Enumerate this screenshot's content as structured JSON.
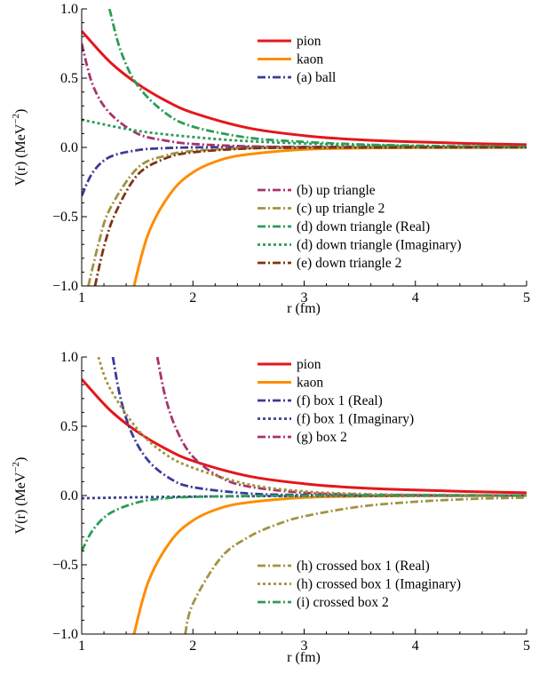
{
  "chart_data": [
    {
      "type": "line",
      "title": "",
      "xlabel": "r (fm)",
      "ylabel": "V(r) (MeV",
      "ylabel_exp": "−2",
      "ylabel_close": ")",
      "xlim": [
        1,
        5
      ],
      "ylim": [
        -1.0,
        1.0
      ],
      "xticks": [
        1,
        2,
        3,
        4,
        5
      ],
      "xtick_labels": [
        "1",
        "2",
        "3",
        "4",
        "5"
      ],
      "yticks": [
        -1.0,
        -0.5,
        0.0,
        0.5,
        1.0
      ],
      "ytick_labels": [
        "−1.0",
        "−0.5",
        "0.0",
        "0.5",
        "1.0"
      ],
      "grid": false,
      "legend_placement": "upper-right and lower-right groups",
      "series": [
        {
          "name": "pion",
          "color": "#e4161b",
          "style": "solid",
          "x": [
            1.0,
            1.25,
            1.5,
            1.75,
            2.0,
            2.5,
            3.0,
            3.5,
            4.0,
            4.5,
            5.0
          ],
          "values": [
            0.84,
            0.62,
            0.46,
            0.34,
            0.25,
            0.14,
            0.085,
            0.055,
            0.04,
            0.028,
            0.02
          ]
        },
        {
          "name": "kaon",
          "color": "#ff8c00",
          "style": "solid",
          "x": [
            1.47,
            1.6,
            1.8,
            2.0,
            2.25,
            2.5,
            3.0,
            3.5,
            4.0,
            4.5,
            5.0
          ],
          "values": [
            -1.0,
            -0.62,
            -0.33,
            -0.18,
            -0.09,
            -0.05,
            -0.015,
            -0.005,
            -0.002,
            -0.001,
            0.0
          ]
        },
        {
          "name": "(a) ball",
          "color": "#3b3b98",
          "style": "dashdot",
          "x": [
            1.0,
            1.1,
            1.25,
            1.5,
            1.75,
            2.0,
            2.5,
            3.0,
            4.0,
            5.0
          ],
          "values": [
            -0.35,
            -0.18,
            -0.07,
            -0.02,
            -0.005,
            0.0,
            0.003,
            0.004,
            0.003,
            0.002
          ]
        },
        {
          "name": "(b) up triangle",
          "color": "#a8336b",
          "style": "dashdot",
          "x": [
            1.0,
            1.1,
            1.25,
            1.5,
            1.75,
            2.0,
            2.5,
            3.0,
            4.0,
            5.0
          ],
          "values": [
            0.75,
            0.45,
            0.25,
            0.1,
            0.05,
            0.025,
            0.008,
            0.003,
            0.001,
            0.0
          ]
        },
        {
          "name": "(c) up triangle 2",
          "color": "#a29340",
          "style": "dashdot",
          "x": [
            1.06,
            1.15,
            1.25,
            1.5,
            1.75,
            2.0,
            2.5,
            3.0,
            4.0,
            5.0
          ],
          "values": [
            -1.0,
            -0.7,
            -0.45,
            -0.15,
            -0.06,
            -0.025,
            -0.005,
            -0.001,
            0.0,
            0.0
          ]
        },
        {
          "name": "(d) down triangle (Real)",
          "color": "#2a9d57",
          "style": "dashdot",
          "x": [
            1.25,
            1.35,
            1.5,
            1.75,
            2.0,
            2.5,
            3.0,
            3.5,
            4.0,
            4.5,
            5.0
          ],
          "values": [
            1.0,
            0.7,
            0.45,
            0.25,
            0.15,
            0.07,
            0.04,
            0.022,
            0.013,
            0.008,
            0.005
          ]
        },
        {
          "name": "(d) down triangle (Imaginary)",
          "color": "#2a9d57",
          "style": "dotted",
          "x": [
            1.0,
            1.5,
            2.0,
            2.5,
            3.0,
            3.5,
            4.0,
            4.5,
            5.0
          ],
          "values": [
            0.2,
            0.12,
            0.075,
            0.045,
            0.028,
            0.017,
            0.01,
            0.006,
            0.004
          ]
        },
        {
          "name": "(e) down triangle 2",
          "color": "#7f3414",
          "style": "dashdot",
          "x": [
            1.12,
            1.2,
            1.3,
            1.5,
            1.75,
            2.0,
            2.5,
            3.0,
            4.0,
            5.0
          ],
          "values": [
            -1.0,
            -0.72,
            -0.48,
            -0.2,
            -0.08,
            -0.035,
            -0.008,
            -0.002,
            0.0,
            0.0
          ]
        }
      ]
    },
    {
      "type": "line",
      "title": "",
      "xlabel": "r (fm)",
      "ylabel": "V(r) (MeV",
      "ylabel_exp": "−2",
      "ylabel_close": ")",
      "xlim": [
        1,
        5
      ],
      "ylim": [
        -1.0,
        1.0
      ],
      "xticks": [
        1,
        2,
        3,
        4,
        5
      ],
      "xtick_labels": [
        "1",
        "2",
        "3",
        "4",
        "5"
      ],
      "yticks": [
        -1.0,
        -0.5,
        0.0,
        0.5,
        1.0
      ],
      "ytick_labels": [
        "−1.0",
        "−0.5",
        "0.0",
        "0.5",
        "1.0"
      ],
      "grid": false,
      "legend_placement": "upper-right and lower-right groups",
      "series": [
        {
          "name": "pion",
          "color": "#e4161b",
          "style": "solid",
          "x": [
            1.0,
            1.25,
            1.5,
            1.75,
            2.0,
            2.5,
            3.0,
            3.5,
            4.0,
            4.5,
            5.0
          ],
          "values": [
            0.84,
            0.62,
            0.46,
            0.34,
            0.25,
            0.14,
            0.085,
            0.055,
            0.04,
            0.028,
            0.02
          ]
        },
        {
          "name": "kaon",
          "color": "#ff8c00",
          "style": "solid",
          "x": [
            1.47,
            1.6,
            1.8,
            2.0,
            2.25,
            2.5,
            3.0,
            3.5,
            4.0,
            4.5,
            5.0
          ],
          "values": [
            -1.0,
            -0.62,
            -0.33,
            -0.18,
            -0.09,
            -0.05,
            -0.015,
            -0.005,
            -0.002,
            -0.001,
            0.0
          ]
        },
        {
          "name": "(f) box 1 (Real)",
          "color": "#3b3b98",
          "style": "dashdot",
          "x": [
            1.28,
            1.35,
            1.45,
            1.6,
            1.8,
            2.0,
            2.5,
            3.0,
            4.0,
            5.0
          ],
          "values": [
            1.0,
            0.7,
            0.45,
            0.25,
            0.12,
            0.06,
            0.015,
            0.004,
            0.0,
            0.0
          ]
        },
        {
          "name": "(f) box 1 (Imaginary)",
          "color": "#3b3b98",
          "style": "dotted",
          "x": [
            1.0,
            1.5,
            2.0,
            2.5,
            3.0,
            4.0,
            5.0
          ],
          "values": [
            -0.02,
            -0.013,
            -0.008,
            -0.005,
            -0.003,
            -0.001,
            0.0
          ]
        },
        {
          "name": "(g) box 2",
          "color": "#a8336b",
          "style": "dashdot",
          "x": [
            1.68,
            1.75,
            1.85,
            2.0,
            2.25,
            2.5,
            3.0,
            3.5,
            4.0,
            5.0
          ],
          "values": [
            1.0,
            0.72,
            0.48,
            0.28,
            0.13,
            0.065,
            0.02,
            0.007,
            0.003,
            0.0
          ]
        },
        {
          "name": "(h) crossed box 1 (Real)",
          "color": "#a29340",
          "style": "dashdot",
          "x": [
            1.93,
            2.0,
            2.25,
            2.5,
            2.75,
            3.0,
            3.5,
            4.0,
            4.5,
            5.0
          ],
          "values": [
            -1.0,
            -0.78,
            -0.45,
            -0.3,
            -0.21,
            -0.15,
            -0.08,
            -0.045,
            -0.025,
            -0.015
          ]
        },
        {
          "name": "(h) crossed box 1 (Imaginary)",
          "color": "#a29340",
          "style": "dotted",
          "x": [
            1.15,
            1.25,
            1.5,
            1.75,
            2.0,
            2.5,
            3.0,
            3.5,
            4.0,
            5.0
          ],
          "values": [
            1.0,
            0.78,
            0.48,
            0.3,
            0.2,
            0.08,
            0.03,
            0.012,
            0.005,
            0.001
          ]
        },
        {
          "name": "(i) crossed box 2",
          "color": "#2a9d57",
          "style": "dashdot",
          "x": [
            1.0,
            1.1,
            1.25,
            1.5,
            1.75,
            2.0,
            2.5,
            3.0,
            4.0,
            5.0
          ],
          "values": [
            -0.4,
            -0.25,
            -0.13,
            -0.05,
            -0.02,
            -0.01,
            -0.003,
            -0.001,
            0.0,
            0.0
          ]
        }
      ]
    }
  ]
}
